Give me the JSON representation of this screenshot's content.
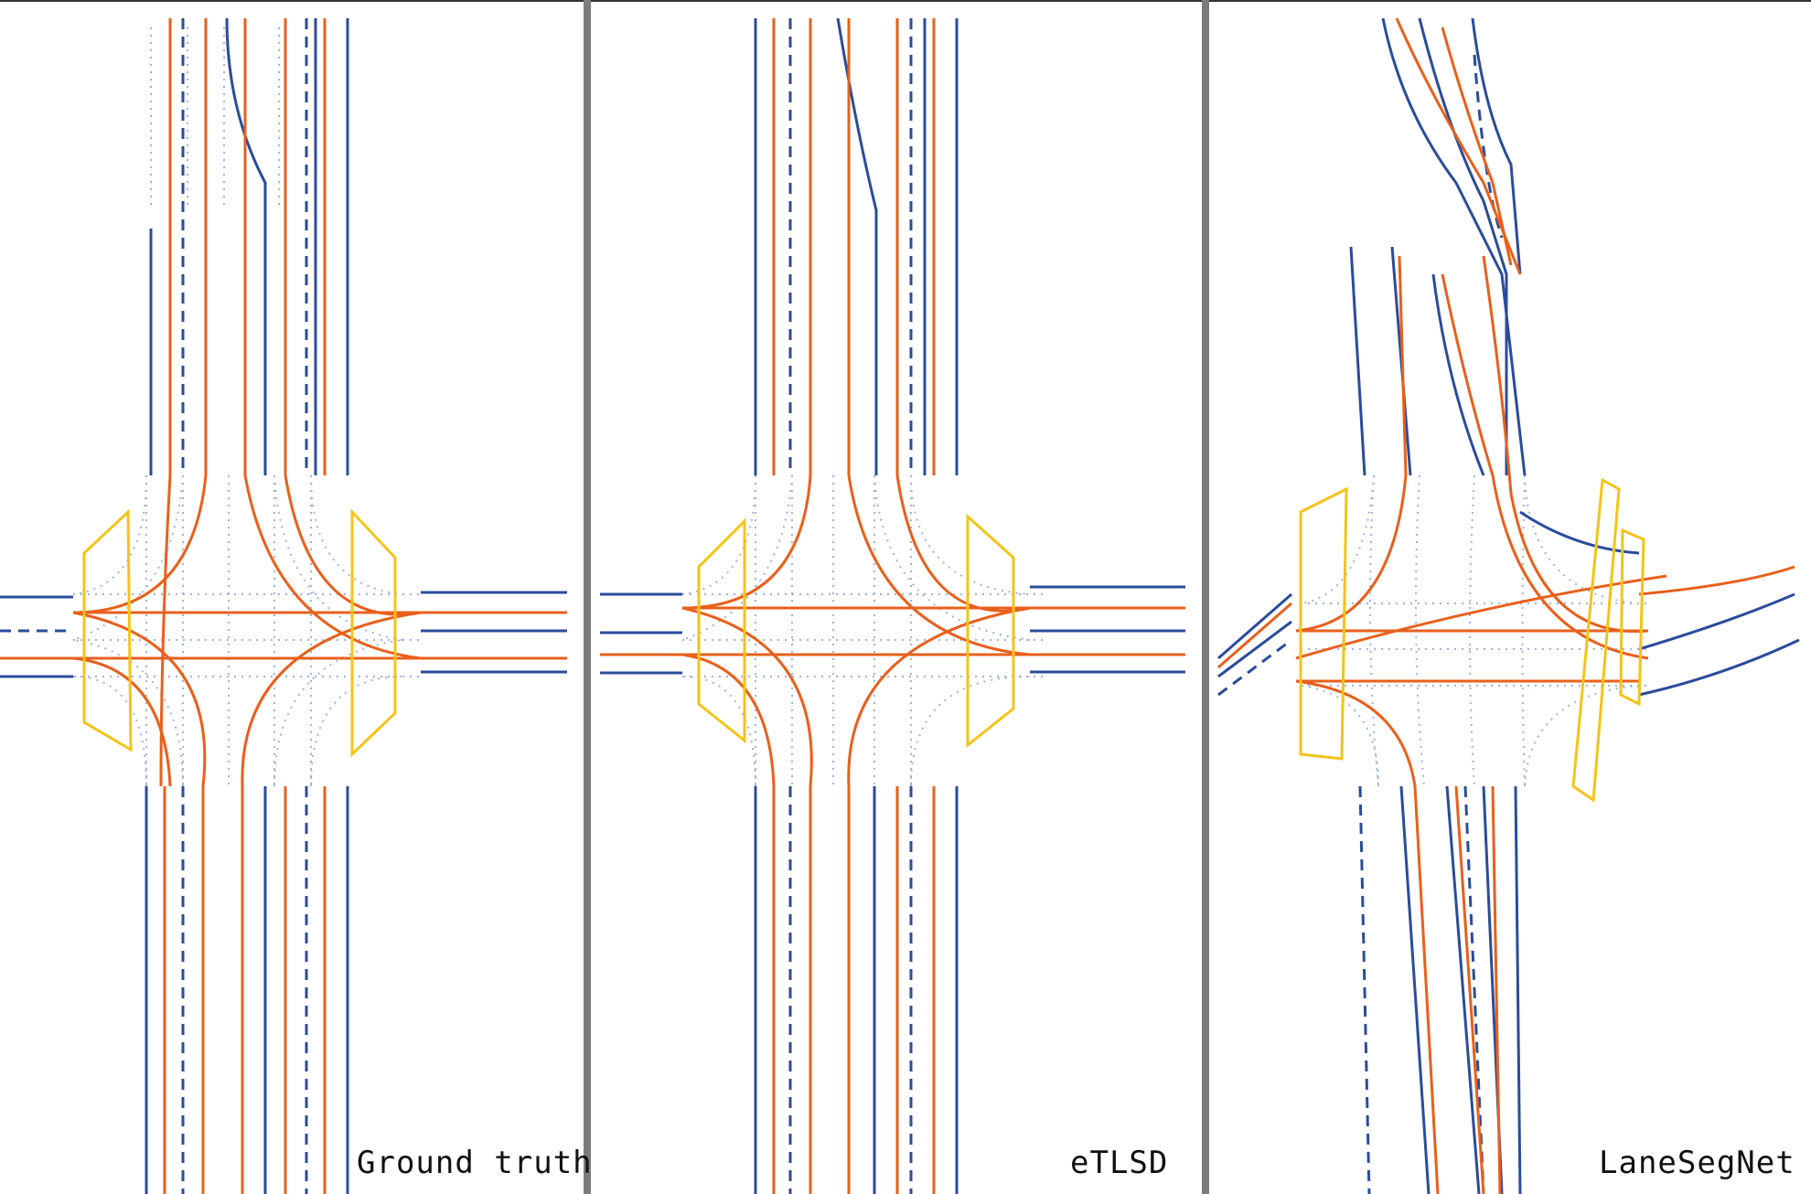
{
  "panels": [
    {
      "id": "gt",
      "label": "Ground truth"
    },
    {
      "id": "etlsd",
      "label": "eTLSD"
    },
    {
      "id": "lanesegnet",
      "label": "LaneSegNet"
    }
  ],
  "colors": {
    "lane_centerline": "#e8601c",
    "lane_boundary": "#2b4c9b",
    "virtual_boundary": "#9fb3d8",
    "pedestrian_crossing": "#f2c418",
    "separator": "#7d7d7d"
  },
  "legend_semantics": {
    "orange_arrowed_lines": "lane centerlines",
    "blue_solid_or_dashed_lines": "lane dividers",
    "dotted_light_blue_lines": "virtual boundaries",
    "yellow_polygons": "pedestrian crossings"
  }
}
